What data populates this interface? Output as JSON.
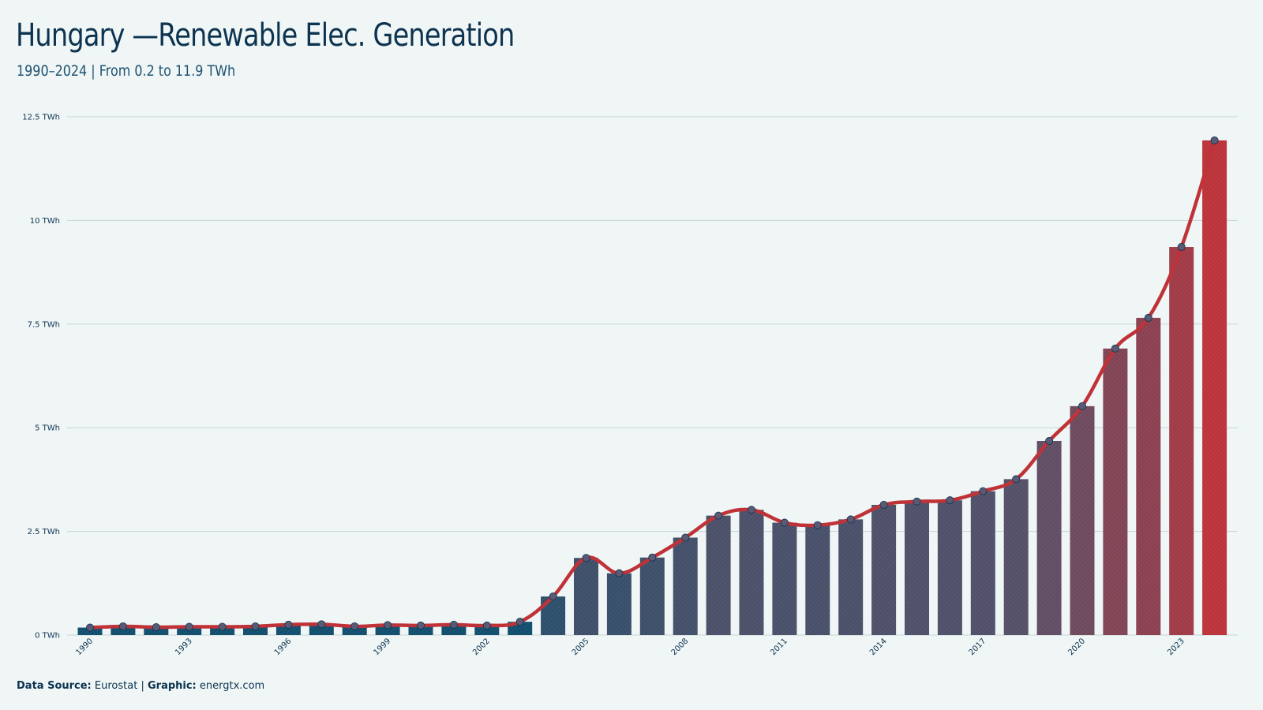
{
  "header": {
    "title": "Hungary —Renewable Elec. Generation",
    "subtitle": "1990–2024 | From 0.2 to 11.9 TWh"
  },
  "footer": {
    "source_label": "Data Source:",
    "source_value": "Eurostat",
    "separator": "|",
    "graphic_label": "Graphic:",
    "graphic_value": "energtx.com"
  },
  "colors": {
    "start": "#124e6e",
    "mid": "#585068",
    "end": "#bc333a",
    "line": "#bf3338",
    "marker": "#5a5a75",
    "grid": "#c8d4d6"
  },
  "chart_data": {
    "type": "bar",
    "overlay": "line",
    "title": "Hungary —Renewable Elec. Generation",
    "subtitle": "1990–2024 | From 0.2 to 11.9 TWh",
    "xlabel": "",
    "ylabel": "",
    "unit": "TWh",
    "ylim": [
      0,
      12.5
    ],
    "yticks": [
      0,
      2.5,
      5,
      7.5,
      10,
      12.5
    ],
    "ytick_labels": [
      "0 TWh",
      "2.5 TWh",
      "5 TWh",
      "7.5 TWh",
      "10 TWh",
      "12.5 TWh"
    ],
    "xtick_labels": [
      "1990",
      "1993",
      "1996",
      "1999",
      "2002",
      "2005",
      "2008",
      "2011",
      "2014",
      "2017",
      "2020",
      "2023"
    ],
    "grid": true,
    "legend": "none",
    "categories": [
      1990,
      1991,
      1992,
      1993,
      1994,
      1995,
      1996,
      1997,
      1998,
      1999,
      2000,
      2001,
      2002,
      2003,
      2004,
      2005,
      2006,
      2007,
      2008,
      2009,
      2010,
      2011,
      2012,
      2013,
      2014,
      2015,
      2016,
      2017,
      2018,
      2019,
      2020,
      2021,
      2022,
      2023,
      2024
    ],
    "values": [
      0.18,
      0.21,
      0.19,
      0.2,
      0.2,
      0.21,
      0.25,
      0.26,
      0.21,
      0.24,
      0.23,
      0.25,
      0.23,
      0.32,
      0.93,
      1.86,
      1.49,
      1.87,
      2.35,
      2.88,
      3.02,
      2.71,
      2.65,
      2.79,
      3.14,
      3.22,
      3.25,
      3.47,
      3.76,
      4.68,
      5.52,
      6.91,
      7.65,
      9.36,
      11.93
    ]
  }
}
